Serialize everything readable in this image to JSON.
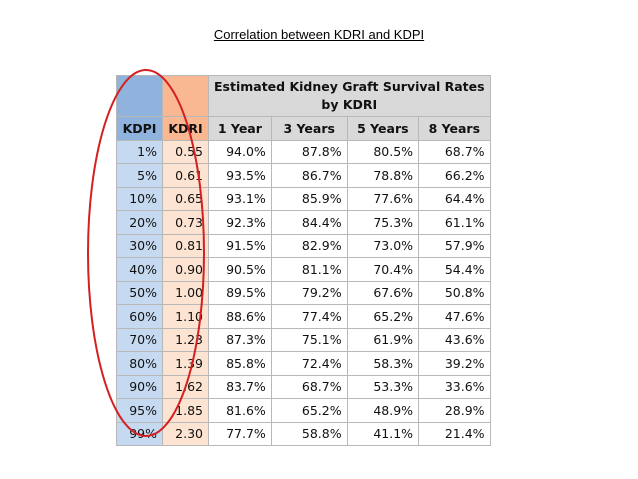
{
  "title": "Correlation between KDRI and KDPI",
  "table": {
    "header_main_line1": "Estimated Kidney Graft Survival Rates",
    "header_main_line2": "by KDRI",
    "col_kdpi": "KDPI",
    "col_kdri": "KDRI",
    "col_1yr": "1 Year",
    "col_3yr": "3 Years",
    "col_5yr": "5 Years",
    "col_8yr": "8 Years",
    "rows": [
      {
        "kdpi": "1%",
        "kdri": "0.55",
        "y1": "94.0%",
        "y3": "87.8%",
        "y5": "80.5%",
        "y8": "68.7%"
      },
      {
        "kdpi": "5%",
        "kdri": "0.61",
        "y1": "93.5%",
        "y3": "86.7%",
        "y5": "78.8%",
        "y8": "66.2%"
      },
      {
        "kdpi": "10%",
        "kdri": "0.65",
        "y1": "93.1%",
        "y3": "85.9%",
        "y5": "77.6%",
        "y8": "64.4%"
      },
      {
        "kdpi": "20%",
        "kdri": "0.73",
        "y1": "92.3%",
        "y3": "84.4%",
        "y5": "75.3%",
        "y8": "61.1%"
      },
      {
        "kdpi": "30%",
        "kdri": "0.81",
        "y1": "91.5%",
        "y3": "82.9%",
        "y5": "73.0%",
        "y8": "57.9%"
      },
      {
        "kdpi": "40%",
        "kdri": "0.90",
        "y1": "90.5%",
        "y3": "81.1%",
        "y5": "70.4%",
        "y8": "54.4%"
      },
      {
        "kdpi": "50%",
        "kdri": "1.00",
        "y1": "89.5%",
        "y3": "79.2%",
        "y5": "67.6%",
        "y8": "50.8%"
      },
      {
        "kdpi": "60%",
        "kdri": "1.10",
        "y1": "88.6%",
        "y3": "77.4%",
        "y5": "65.2%",
        "y8": "47.6%"
      },
      {
        "kdpi": "70%",
        "kdri": "1.23",
        "y1": "87.3%",
        "y3": "75.1%",
        "y5": "61.9%",
        "y8": "43.6%"
      },
      {
        "kdpi": "80%",
        "kdri": "1.39",
        "y1": "85.8%",
        "y3": "72.4%",
        "y5": "58.3%",
        "y8": "39.2%"
      },
      {
        "kdpi": "90%",
        "kdri": "1.62",
        "y1": "83.7%",
        "y3": "68.7%",
        "y5": "53.3%",
        "y8": "33.6%"
      },
      {
        "kdpi": "95%",
        "kdri": "1.85",
        "y1": "81.6%",
        "y3": "65.2%",
        "y5": "48.9%",
        "y8": "28.9%"
      },
      {
        "kdpi": "99%",
        "kdri": "2.30",
        "y1": "77.7%",
        "y3": "58.8%",
        "y5": "41.1%",
        "y8": "21.4%"
      }
    ]
  },
  "annotation": {
    "ellipse_color": "#d42020"
  }
}
